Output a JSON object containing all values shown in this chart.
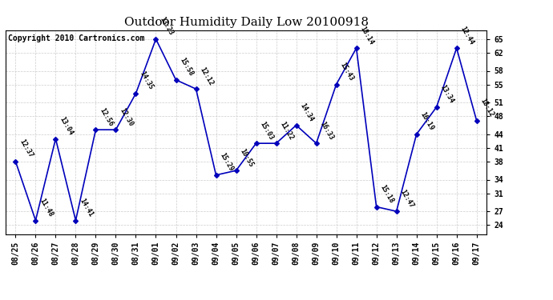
{
  "title": "Outdoor Humidity Daily Low 20100918",
  "copyright": "Copyright 2010 Cartronics.com",
  "x_labels": [
    "08/25",
    "08/26",
    "08/27",
    "08/28",
    "08/29",
    "08/30",
    "08/31",
    "09/01",
    "09/02",
    "09/03",
    "09/04",
    "09/05",
    "09/06",
    "09/07",
    "09/08",
    "09/09",
    "09/10",
    "09/11",
    "09/12",
    "09/13",
    "09/14",
    "09/15",
    "09/16",
    "09/17"
  ],
  "y_values": [
    38,
    25,
    43,
    25,
    45,
    45,
    53,
    65,
    56,
    54,
    35,
    36,
    42,
    42,
    46,
    42,
    55,
    63,
    28,
    27,
    44,
    50,
    63,
    47
  ],
  "time_labels": [
    "12:37",
    "11:48",
    "13:04",
    "14:41",
    "12:56",
    "12:30",
    "14:35",
    "13:23",
    "15:58",
    "12:12",
    "15:29",
    "10:55",
    "15:03",
    "11:22",
    "14:34",
    "16:33",
    "15:43",
    "18:14",
    "15:18",
    "12:47",
    "16:19",
    "13:34",
    "12:44",
    "18:12"
  ],
  "ylim_min": 22,
  "ylim_max": 67,
  "yticks": [
    24,
    27,
    31,
    34,
    38,
    41,
    44,
    48,
    51,
    55,
    58,
    62,
    65
  ],
  "line_color": "#0000bb",
  "marker_color": "#0000bb",
  "bg_color": "#ffffff",
  "grid_color": "#cccccc",
  "title_fontsize": 11,
  "annot_fontsize": 6,
  "tick_fontsize": 7,
  "copyright_fontsize": 7
}
